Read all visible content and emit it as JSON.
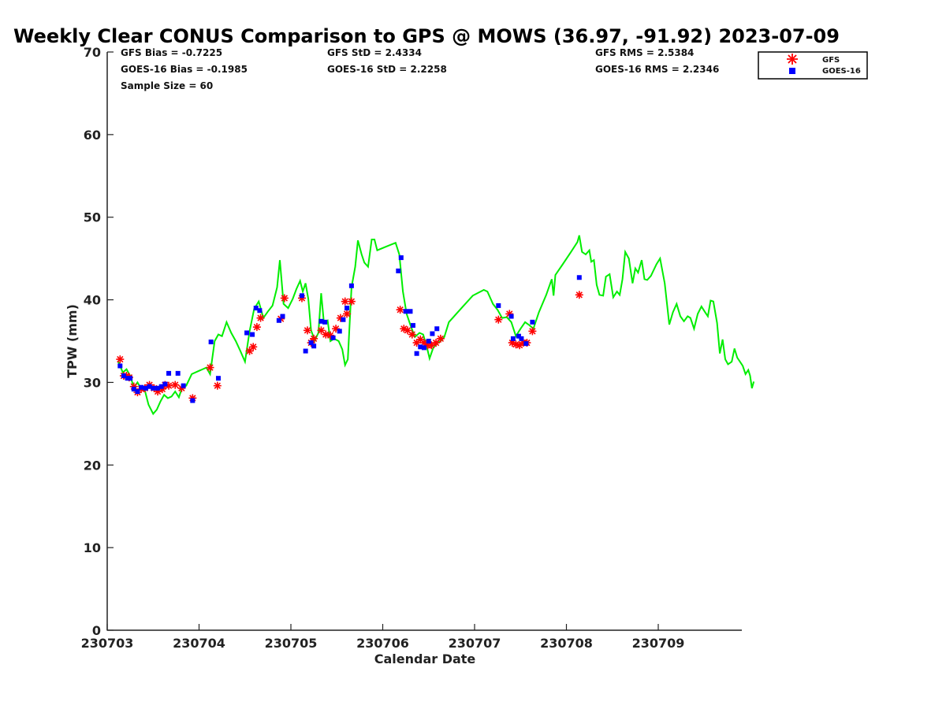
{
  "chart_data": {
    "type": "line",
    "title": "Weekly Clear CONUS Comparison to GPS @ MOWS (36.97, -91.92) 2023-07-09",
    "xlabel": "Calendar Date",
    "ylabel": "TPW (mm)",
    "xlim": [
      230703,
      230709.9
    ],
    "ylim": [
      0,
      70
    ],
    "x_tick_labels": [
      "230703",
      "230704",
      "230705",
      "230706",
      "230707",
      "230708",
      "230709"
    ],
    "y_ticks": [
      0,
      10,
      20,
      30,
      40,
      50,
      60,
      70
    ],
    "grid": false,
    "legend_position": "top-right",
    "stats": [
      "GFS Bias = -0.7225",
      "GFS StD = 2.4334",
      "GFS RMS = 2.5384",
      "GOES-16 Bias = -0.1985",
      "GOES-16 StD = 2.2258",
      "GOES-16 RMS = 2.2346",
      "Sample Size = 60"
    ],
    "series": [
      {
        "name": "GPS",
        "style": "line",
        "color": "#00ee00",
        "points": [
          [
            230703.12,
            32.5
          ],
          [
            230703.17,
            31.2
          ],
          [
            230703.21,
            31.6
          ],
          [
            230703.25,
            30.8
          ],
          [
            230703.29,
            29.4
          ],
          [
            230703.33,
            30.0
          ],
          [
            230703.37,
            29.2
          ],
          [
            230703.41,
            29.0
          ],
          [
            230703.45,
            27.3
          ],
          [
            230703.5,
            26.2
          ],
          [
            230703.54,
            26.7
          ],
          [
            230703.58,
            27.7
          ],
          [
            230703.62,
            28.5
          ],
          [
            230703.66,
            28.1
          ],
          [
            230703.7,
            28.3
          ],
          [
            230703.74,
            28.9
          ],
          [
            230703.78,
            28.2
          ],
          [
            230703.82,
            29.5
          ],
          [
            230703.86,
            29.6
          ],
          [
            230703.92,
            31.0
          ],
          [
            230704.0,
            31.4
          ],
          [
            230704.08,
            31.8
          ],
          [
            230704.12,
            31.0
          ],
          [
            230704.17,
            35.0
          ],
          [
            230704.21,
            35.8
          ],
          [
            230704.25,
            35.6
          ],
          [
            230704.3,
            37.3
          ],
          [
            230704.35,
            36.0
          ],
          [
            230704.4,
            35.0
          ],
          [
            230704.45,
            33.8
          ],
          [
            230704.5,
            32.5
          ],
          [
            230704.55,
            36.2
          ],
          [
            230704.6,
            38.9
          ],
          [
            230704.65,
            39.8
          ],
          [
            230704.7,
            37.8
          ],
          [
            230704.75,
            38.6
          ],
          [
            230704.8,
            39.3
          ],
          [
            230704.85,
            41.5
          ],
          [
            230704.88,
            44.8
          ],
          [
            230704.92,
            39.5
          ],
          [
            230704.97,
            39.0
          ],
          [
            230705.02,
            40.1
          ],
          [
            230705.06,
            41.3
          ],
          [
            230705.1,
            42.3
          ],
          [
            230705.13,
            41.0
          ],
          [
            230705.16,
            42.0
          ],
          [
            230705.19,
            40.1
          ],
          [
            230705.22,
            36.3
          ],
          [
            230705.26,
            35.1
          ],
          [
            230705.3,
            36.0
          ],
          [
            230705.33,
            40.8
          ],
          [
            230705.36,
            37.2
          ],
          [
            230705.4,
            37.5
          ],
          [
            230705.43,
            35.0
          ],
          [
            230705.47,
            35.3
          ],
          [
            230705.52,
            35.0
          ],
          [
            230705.56,
            34.0
          ],
          [
            230705.59,
            32.1
          ],
          [
            230705.62,
            32.8
          ],
          [
            230705.66,
            41.5
          ],
          [
            230705.7,
            44.0
          ],
          [
            230705.73,
            47.2
          ],
          [
            230705.77,
            45.5
          ],
          [
            230705.8,
            44.5
          ],
          [
            230705.84,
            44.0
          ],
          [
            230705.88,
            47.3
          ],
          [
            230705.91,
            47.3
          ],
          [
            230705.94,
            46.0
          ],
          [
            230706.05,
            46.5
          ],
          [
            230706.14,
            46.9
          ],
          [
            230706.18,
            45.5
          ],
          [
            230706.22,
            41.0
          ],
          [
            230706.26,
            38.3
          ],
          [
            230706.3,
            37.0
          ],
          [
            230706.35,
            35.5
          ],
          [
            230706.4,
            36.0
          ],
          [
            230706.44,
            35.8
          ],
          [
            230706.48,
            34.3
          ],
          [
            230706.51,
            32.9
          ],
          [
            230706.55,
            34.2
          ],
          [
            230706.6,
            34.8
          ],
          [
            230706.63,
            35.0
          ],
          [
            230706.67,
            35.5
          ],
          [
            230706.72,
            37.3
          ],
          [
            230706.85,
            38.9
          ],
          [
            230706.98,
            40.5
          ],
          [
            230707.1,
            41.2
          ],
          [
            230707.14,
            41.0
          ],
          [
            230707.2,
            39.5
          ],
          [
            230707.25,
            38.8
          ],
          [
            230707.3,
            37.8
          ],
          [
            230707.35,
            37.9
          ],
          [
            230707.4,
            37.3
          ],
          [
            230707.45,
            35.6
          ],
          [
            230707.5,
            36.5
          ],
          [
            230707.55,
            37.3
          ],
          [
            230707.6,
            36.9
          ],
          [
            230707.64,
            36.5
          ],
          [
            230707.7,
            38.5
          ],
          [
            230707.78,
            40.6
          ],
          [
            230707.84,
            42.5
          ],
          [
            230707.86,
            40.5
          ],
          [
            230707.88,
            43.0
          ],
          [
            230707.96,
            44.3
          ],
          [
            230708.05,
            45.8
          ],
          [
            230708.12,
            47.0
          ],
          [
            230708.14,
            47.8
          ],
          [
            230708.17,
            45.8
          ],
          [
            230708.21,
            45.5
          ],
          [
            230708.25,
            46.0
          ],
          [
            230708.27,
            44.6
          ],
          [
            230708.3,
            44.8
          ],
          [
            230708.33,
            41.8
          ],
          [
            230708.36,
            40.6
          ],
          [
            230708.4,
            40.5
          ],
          [
            230708.43,
            42.8
          ],
          [
            230708.47,
            43.1
          ],
          [
            230708.51,
            40.3
          ],
          [
            230708.55,
            41.0
          ],
          [
            230708.58,
            40.6
          ],
          [
            230708.61,
            42.5
          ],
          [
            230708.64,
            45.8
          ],
          [
            230708.68,
            45.0
          ],
          [
            230708.72,
            42.0
          ],
          [
            230708.75,
            43.8
          ],
          [
            230708.78,
            43.3
          ],
          [
            230708.82,
            44.8
          ],
          [
            230708.85,
            42.5
          ],
          [
            230708.88,
            42.4
          ],
          [
            230708.92,
            42.9
          ],
          [
            230708.98,
            44.3
          ],
          [
            230709.02,
            45.0
          ],
          [
            230709.07,
            42.0
          ],
          [
            230709.12,
            37.0
          ],
          [
            230709.16,
            38.5
          ],
          [
            230709.2,
            39.5
          ],
          [
            230709.24,
            38.0
          ],
          [
            230709.28,
            37.4
          ],
          [
            230709.32,
            38.0
          ],
          [
            230709.35,
            37.8
          ],
          [
            230709.39,
            36.5
          ],
          [
            230709.43,
            38.3
          ],
          [
            230709.47,
            39.2
          ],
          [
            230709.51,
            38.5
          ],
          [
            230709.54,
            38.0
          ],
          [
            230709.57,
            39.9
          ],
          [
            230709.6,
            39.8
          ],
          [
            230709.64,
            37.2
          ],
          [
            230709.67,
            33.5
          ],
          [
            230709.7,
            35.2
          ],
          [
            230709.73,
            32.8
          ],
          [
            230709.76,
            32.2
          ],
          [
            230709.8,
            32.5
          ],
          [
            230709.83,
            34.1
          ],
          [
            230709.86,
            33.0
          ],
          [
            230709.89,
            32.5
          ],
          [
            230709.92,
            32.0
          ],
          [
            230709.95,
            31.0
          ],
          [
            230709.98,
            31.5
          ],
          [
            230710.0,
            30.8
          ],
          [
            230710.02,
            29.3
          ],
          [
            230710.04,
            30.1
          ]
        ]
      },
      {
        "name": "GFS",
        "style": "asterisk",
        "color": "#ff0000",
        "points": [
          [
            230703.14,
            32.8
          ],
          [
            230703.18,
            30.8
          ],
          [
            230703.21,
            30.8
          ],
          [
            230703.24,
            30.6
          ],
          [
            230703.29,
            29.5
          ],
          [
            230703.33,
            28.8
          ],
          [
            230703.37,
            29.2
          ],
          [
            230703.41,
            29.3
          ],
          [
            230703.46,
            29.7
          ],
          [
            230703.51,
            29.3
          ],
          [
            230703.55,
            28.9
          ],
          [
            230703.6,
            29.2
          ],
          [
            230703.63,
            29.7
          ],
          [
            230703.67,
            29.6
          ],
          [
            230703.74,
            29.7
          ],
          [
            230703.81,
            29.3
          ],
          [
            230703.93,
            28.1
          ],
          [
            230704.12,
            31.8
          ],
          [
            230704.2,
            29.6
          ],
          [
            230704.55,
            33.8
          ],
          [
            230704.59,
            34.3
          ],
          [
            230704.63,
            36.7
          ],
          [
            230704.67,
            37.8
          ],
          [
            230704.89,
            37.7
          ],
          [
            230704.93,
            40.2
          ],
          [
            230705.12,
            40.2
          ],
          [
            230705.18,
            36.3
          ],
          [
            230705.22,
            34.8
          ],
          [
            230705.25,
            35.3
          ],
          [
            230705.33,
            36.3
          ],
          [
            230705.38,
            35.8
          ],
          [
            230705.43,
            35.7
          ],
          [
            230705.49,
            36.5
          ],
          [
            230705.54,
            37.8
          ],
          [
            230705.59,
            39.8
          ],
          [
            230705.61,
            38.3
          ],
          [
            230705.66,
            39.8
          ],
          [
            230706.19,
            38.8
          ],
          [
            230706.23,
            36.5
          ],
          [
            230706.27,
            36.3
          ],
          [
            230706.32,
            35.8
          ],
          [
            230706.37,
            34.8
          ],
          [
            230706.41,
            35.2
          ],
          [
            230706.45,
            34.8
          ],
          [
            230706.49,
            34.5
          ],
          [
            230706.53,
            34.5
          ],
          [
            230706.58,
            34.8
          ],
          [
            230706.63,
            35.3
          ],
          [
            230707.26,
            37.6
          ],
          [
            230707.38,
            38.3
          ],
          [
            230707.41,
            34.8
          ],
          [
            230707.45,
            34.6
          ],
          [
            230707.49,
            34.5
          ],
          [
            230707.53,
            34.8
          ],
          [
            230707.57,
            34.8
          ],
          [
            230707.63,
            36.2
          ],
          [
            230708.14,
            40.6
          ]
        ]
      },
      {
        "name": "GOES-16",
        "style": "square",
        "color": "#0000ff",
        "points": [
          [
            230703.14,
            32.0
          ],
          [
            230703.18,
            30.8
          ],
          [
            230703.22,
            30.5
          ],
          [
            230703.25,
            30.5
          ],
          [
            230703.29,
            29.2
          ],
          [
            230703.33,
            28.9
          ],
          [
            230703.37,
            29.4
          ],
          [
            230703.42,
            29.3
          ],
          [
            230703.46,
            29.5
          ],
          [
            230703.5,
            29.3
          ],
          [
            230703.55,
            29.3
          ],
          [
            230703.59,
            29.5
          ],
          [
            230703.63,
            29.8
          ],
          [
            230703.67,
            31.1
          ],
          [
            230703.77,
            31.1
          ],
          [
            230703.83,
            29.6
          ],
          [
            230703.93,
            27.8
          ],
          [
            230704.13,
            34.9
          ],
          [
            230704.21,
            30.5
          ],
          [
            230704.52,
            36.0
          ],
          [
            230704.58,
            35.8
          ],
          [
            230704.62,
            39.0
          ],
          [
            230704.66,
            38.7
          ],
          [
            230704.87,
            37.5
          ],
          [
            230704.91,
            38.0
          ],
          [
            230705.12,
            40.5
          ],
          [
            230705.16,
            33.8
          ],
          [
            230705.22,
            34.8
          ],
          [
            230705.25,
            34.4
          ],
          [
            230705.33,
            37.4
          ],
          [
            230705.37,
            37.3
          ],
          [
            230705.46,
            35.4
          ],
          [
            230705.53,
            36.2
          ],
          [
            230705.57,
            37.6
          ],
          [
            230705.61,
            39.0
          ],
          [
            230705.66,
            41.7
          ],
          [
            230706.17,
            43.5
          ],
          [
            230706.2,
            45.1
          ],
          [
            230706.25,
            38.6
          ],
          [
            230706.3,
            38.6
          ],
          [
            230706.33,
            36.9
          ],
          [
            230706.37,
            33.5
          ],
          [
            230706.41,
            34.3
          ],
          [
            230706.45,
            34.2
          ],
          [
            230706.5,
            35.0
          ],
          [
            230706.54,
            35.9
          ],
          [
            230706.59,
            36.5
          ],
          [
            230707.26,
            39.3
          ],
          [
            230707.4,
            38.0
          ],
          [
            230707.42,
            35.3
          ],
          [
            230707.48,
            35.6
          ],
          [
            230707.51,
            35.3
          ],
          [
            230707.56,
            34.7
          ],
          [
            230707.63,
            37.3
          ],
          [
            230708.14,
            42.7
          ]
        ]
      }
    ]
  }
}
